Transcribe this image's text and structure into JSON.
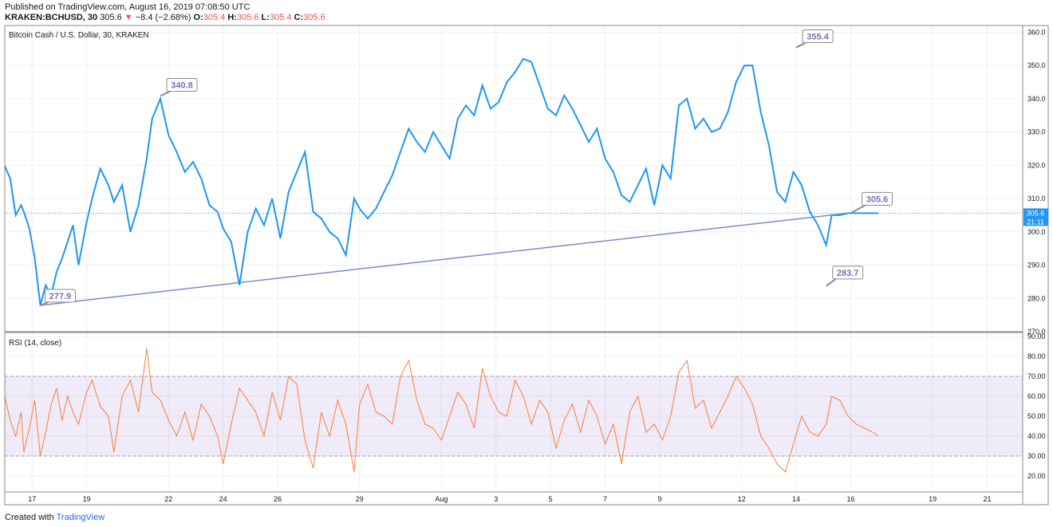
{
  "header": {
    "published": "Published on TradingView.com, August 16, 2019 07:08:50 UTC",
    "symbol": "KRAKEN:BCHUSD, 30",
    "last": "305.6",
    "arrow": "▼",
    "change": "−8.4 (−2.68%)",
    "o_label": "O:",
    "o_value": "305.4",
    "h_label": "H:",
    "h_value": "305.6",
    "l_label": "L:",
    "l_value": "305.4",
    "c_label": "C:",
    "c_value": "305.6"
  },
  "footer": {
    "created_with": "Created with",
    "brand": "TradingView"
  },
  "chart_data": [
    {
      "type": "line",
      "title": "Bitcoin Cash / U.S. Dollar, 30, KRAKEN",
      "ylim": [
        270,
        362
      ],
      "y_ticks": [
        270,
        280,
        290,
        300,
        310,
        320,
        330,
        340,
        350,
        360
      ],
      "x_tick_labels": [
        "17",
        "19",
        "22",
        "24",
        "26",
        "29",
        "Aug",
        "3",
        "5",
        "7",
        "9",
        "12",
        "14",
        "16",
        "19",
        "21"
      ],
      "x_tick_days": [
        0.3,
        2.3,
        5.3,
        7.3,
        9.3,
        12.3,
        15.3,
        17.3,
        19.3,
        21.3,
        23.3,
        26.3,
        28.3,
        30.3,
        33.3,
        35.3
      ],
      "x_range_days": [
        -0.7,
        36.6
      ],
      "series": [
        {
          "color": "#2196f3",
          "x": [
            -0.7,
            -0.5,
            -0.3,
            -0.1,
            0.0,
            0.2,
            0.4,
            0.6,
            0.8,
            1.0,
            1.2,
            1.4,
            1.6,
            1.8,
            2.0,
            2.3,
            2.5,
            2.8,
            3.1,
            3.3,
            3.6,
            3.9,
            4.2,
            4.5,
            4.7,
            5.0,
            5.3,
            5.6,
            5.9,
            6.2,
            6.5,
            6.8,
            7.1,
            7.3,
            7.6,
            7.9,
            8.2,
            8.5,
            8.8,
            9.1,
            9.4,
            9.7,
            10.0,
            10.3,
            10.6,
            10.9,
            11.2,
            11.5,
            11.8,
            12.1,
            12.3,
            12.6,
            12.9,
            13.2,
            13.5,
            13.8,
            14.1,
            14.4,
            14.7,
            15.0,
            15.3,
            15.6,
            15.9,
            16.2,
            16.5,
            16.8,
            17.1,
            17.4,
            17.7,
            18.0,
            18.3,
            18.6,
            18.9,
            19.2,
            19.5,
            19.8,
            20.1,
            20.4,
            20.7,
            21.0,
            21.3,
            21.6,
            21.9,
            22.2,
            22.5,
            22.8,
            23.1,
            23.4,
            23.7,
            24.0,
            24.3,
            24.6,
            24.9,
            25.2,
            25.5,
            25.8,
            26.1,
            26.4,
            26.7,
            27.0,
            27.3,
            27.6,
            27.9,
            28.2,
            28.5,
            28.8,
            29.1,
            29.4,
            29.6,
            29.9,
            30.2,
            30.5,
            30.8,
            31.1,
            31.3
          ],
          "y": [
            319.8,
            316,
            305,
            308,
            306,
            301,
            292,
            278,
            284,
            281,
            288,
            292,
            297,
            302,
            290,
            303,
            310,
            319,
            314,
            309,
            314,
            300,
            308,
            322,
            334,
            340,
            329,
            324,
            318,
            321,
            316,
            308,
            306,
            301,
            297,
            284,
            300,
            307,
            302,
            310,
            298,
            312,
            318,
            324,
            306,
            304,
            300,
            298,
            293,
            310,
            307,
            304,
            307,
            312,
            317,
            324,
            331,
            327,
            324,
            330,
            326,
            322,
            334,
            338,
            335,
            344,
            337,
            339,
            345,
            348,
            352,
            351,
            344,
            337,
            335,
            341,
            337,
            332,
            327,
            331,
            322,
            318,
            311,
            309,
            314,
            319,
            308,
            320,
            316,
            338,
            340,
            331,
            334,
            330,
            331,
            336,
            345,
            350,
            350,
            336,
            326,
            312,
            309,
            318,
            314,
            306,
            302,
            296,
            305,
            305,
            305.6,
            305.6,
            305.6,
            305.6,
            305.6
          ]
        },
        {
          "name": "RSI (14, close)",
          "color": "#ff7c39",
          "ylim": [
            12,
            92
          ],
          "y_ticks": [
            20,
            30,
            40,
            50,
            60,
            70,
            80,
            90
          ],
          "band": [
            30,
            70
          ],
          "x": [
            -0.7,
            -0.5,
            -0.3,
            -0.1,
            0.0,
            0.2,
            0.4,
            0.6,
            0.8,
            1.0,
            1.2,
            1.4,
            1.6,
            1.8,
            2.0,
            2.3,
            2.5,
            2.8,
            3.1,
            3.3,
            3.6,
            3.9,
            4.2,
            4.5,
            4.7,
            5.0,
            5.3,
            5.6,
            5.9,
            6.2,
            6.5,
            6.8,
            7.1,
            7.3,
            7.6,
            7.9,
            8.2,
            8.5,
            8.8,
            9.1,
            9.4,
            9.7,
            10.0,
            10.3,
            10.6,
            10.9,
            11.2,
            11.5,
            11.8,
            12.1,
            12.3,
            12.6,
            12.9,
            13.2,
            13.5,
            13.8,
            14.1,
            14.4,
            14.7,
            15.0,
            15.3,
            15.6,
            15.9,
            16.2,
            16.5,
            16.8,
            17.1,
            17.4,
            17.7,
            18.0,
            18.3,
            18.6,
            18.9,
            19.2,
            19.5,
            19.8,
            20.1,
            20.4,
            20.7,
            21.0,
            21.3,
            21.6,
            21.9,
            22.2,
            22.5,
            22.8,
            23.1,
            23.4,
            23.7,
            24.0,
            24.3,
            24.6,
            24.9,
            25.2,
            25.5,
            25.8,
            26.1,
            26.4,
            26.7,
            27.0,
            27.3,
            27.6,
            27.9,
            28.2,
            28.5,
            28.8,
            29.1,
            29.4,
            29.6,
            29.9,
            30.2,
            30.5,
            30.8,
            31.1,
            31.3
          ],
          "y": [
            60,
            48,
            40,
            52,
            32,
            44,
            58,
            30,
            42,
            56,
            64,
            48,
            60,
            52,
            46,
            62,
            68,
            55,
            50,
            32,
            60,
            68,
            52,
            84,
            62,
            58,
            48,
            40,
            52,
            38,
            56,
            50,
            40,
            26,
            46,
            64,
            58,
            52,
            40,
            62,
            48,
            70,
            66,
            38,
            24,
            52,
            40,
            58,
            46,
            22,
            56,
            66,
            52,
            50,
            46,
            70,
            78,
            58,
            46,
            44,
            38,
            50,
            62,
            56,
            44,
            74,
            60,
            52,
            50,
            68,
            60,
            46,
            58,
            52,
            34,
            48,
            56,
            42,
            58,
            50,
            36,
            46,
            26,
            52,
            60,
            42,
            46,
            38,
            50,
            72,
            78,
            54,
            58,
            44,
            52,
            60,
            70,
            64,
            56,
            40,
            34,
            26,
            22,
            36,
            50,
            42,
            40,
            46,
            60,
            58,
            50,
            46,
            44,
            42,
            40
          ]
        }
      ],
      "annotations": [
        {
          "text": "340.8",
          "x": 5.0,
          "y": 340.8
        },
        {
          "text": "277.9",
          "x": 0.6,
          "y": 277.9
        },
        {
          "text": "355.4",
          "x": 28.3,
          "y": 355.4
        },
        {
          "text": "305.6",
          "x": 30.3,
          "y": 305.6
        },
        {
          "text": "283.7",
          "x": 29.4,
          "y": 283.7
        }
      ],
      "trendline": {
        "x1": 0.6,
        "y1": 277.9,
        "x2": 30.2,
        "y2": 305.6
      },
      "last_price": {
        "value": "305.6",
        "time": "21:11",
        "y": 305.6
      },
      "grid": true
    }
  ]
}
